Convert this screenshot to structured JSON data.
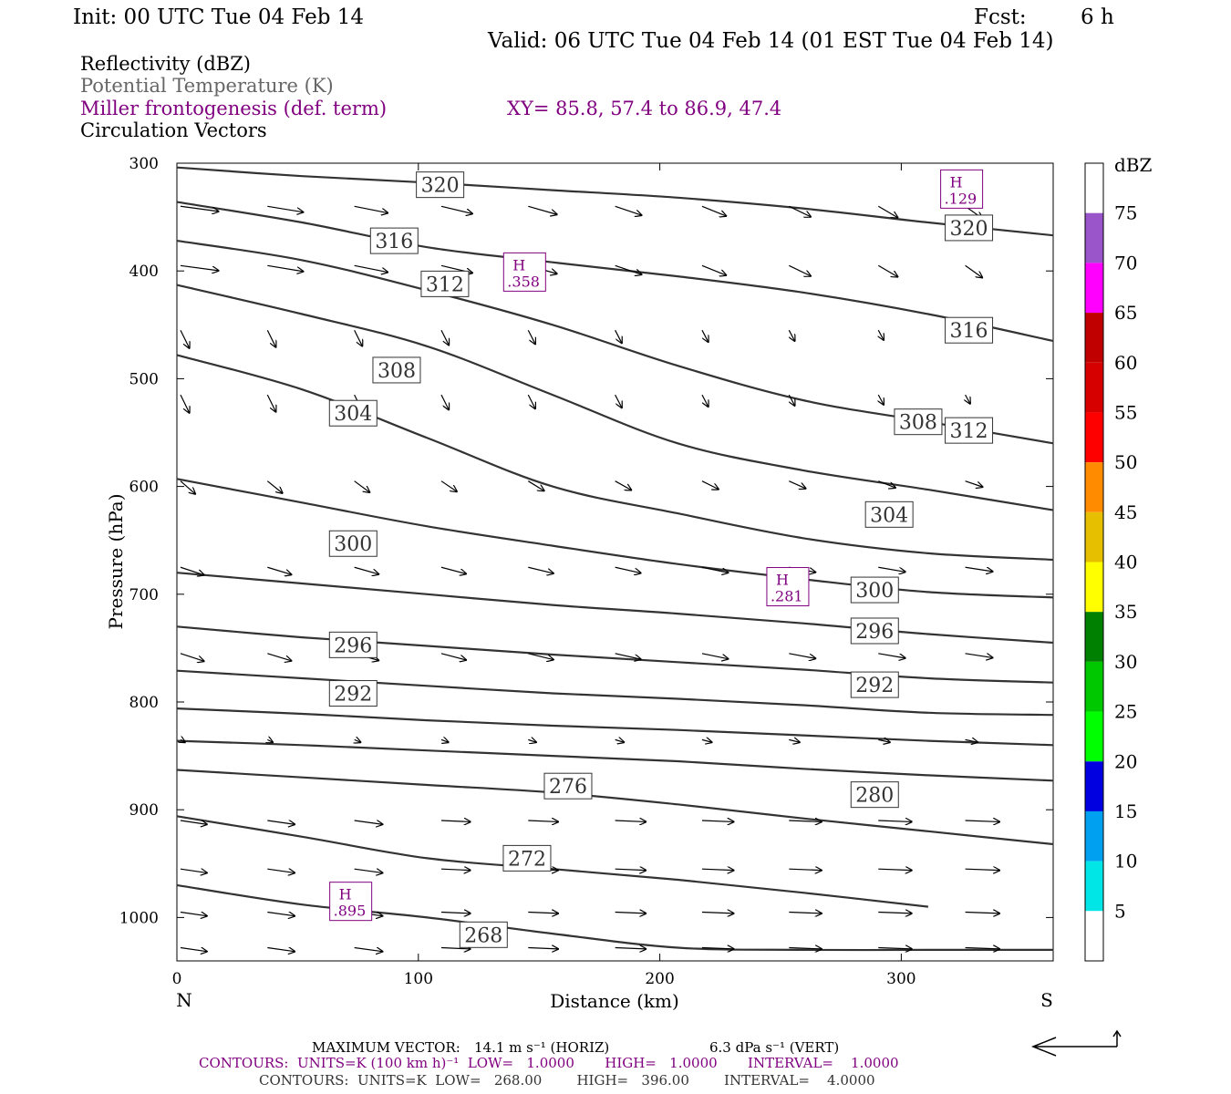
{
  "header": {
    "init": "Init: 00 UTC Tue 04 Feb 14",
    "fcst_label": "Fcst:",
    "fcst_value": "6 h",
    "valid": "Valid: 06 UTC Tue 04 Feb 14 (01 EST Tue 04 Feb 14)"
  },
  "fields": {
    "reflectivity": "Reflectivity (dBZ)",
    "theta": "Potential Temperature (K)",
    "miller": "Miller frontogenesis (def. term)",
    "xy": "XY=  85.8, 57.4 to  86.9, 47.4",
    "vectors": "Circulation Vectors"
  },
  "colors": {
    "contour": "#333333",
    "miller": "#800080",
    "theta_text": "#666666",
    "vector": "#000000"
  },
  "chart_data": {
    "type": "cross-section",
    "xlabel": "Distance (km)",
    "ylabel": "Pressure (hPa)",
    "xlim": [
      0,
      363
    ],
    "ylim": [
      1040,
      300
    ],
    "x_ticks": [
      0,
      100,
      200,
      300
    ],
    "y_ticks": [
      300,
      400,
      500,
      600,
      700,
      800,
      900,
      1000
    ],
    "end_labels": {
      "left": "N",
      "right": "S"
    },
    "theta_contours": [
      {
        "level": 320,
        "label": "320",
        "p": [
          304,
          312,
          318,
          325,
          332,
          342,
          355,
          367
        ],
        "labels": [
          [
            109,
            320
          ],
          [
            328,
            360
          ]
        ]
      },
      {
        "level": 316,
        "label": "316",
        "p": [
          336,
          355,
          378,
          392,
          405,
          420,
          440,
          465
        ],
        "labels": [
          [
            90,
            372
          ],
          [
            328,
            455
          ]
        ]
      },
      {
        "level": 312,
        "label": "312",
        "p": [
          372,
          390,
          418,
          450,
          488,
          520,
          540,
          560
        ],
        "labels": [
          [
            111,
            412
          ],
          [
            328,
            548
          ]
        ]
      },
      {
        "level": 308,
        "label": "308",
        "p": [
          413,
          440,
          470,
          515,
          560,
          585,
          603,
          622
        ],
        "labels": [
          [
            91,
            492
          ],
          [
            307,
            540
          ]
        ]
      },
      {
        "level": 304,
        "label": "304",
        "p": [
          478,
          510,
          555,
          600,
          625,
          648,
          662,
          668
        ],
        "labels": [
          [
            73,
            532
          ],
          [
            295,
            626
          ]
        ]
      },
      {
        "level": 300,
        "label": "300",
        "p": [
          593,
          615,
          637,
          655,
          672,
          686,
          698,
          703
        ],
        "labels": [
          [
            73,
            653
          ],
          [
            289,
            696
          ]
        ]
      },
      {
        "level": 296,
        "label": "296",
        "p": [
          680,
          690,
          700,
          710,
          718,
          727,
          737,
          745
        ],
        "labels": [
          [
            73,
            747
          ],
          [
            289,
            734
          ]
        ]
      },
      {
        "level": 292,
        "label": "292",
        "p": [
          730,
          740,
          748,
          756,
          763,
          770,
          778,
          782
        ],
        "labels": [
          [
            73,
            792
          ],
          [
            289,
            784
          ]
        ]
      },
      {
        "level": 288,
        "label": "",
        "p": [
          771,
          778,
          785,
          792,
          797,
          803,
          810,
          812
        ],
        "labels": []
      },
      {
        "level": 284,
        "label": "",
        "p": [
          806,
          811,
          817,
          822,
          826,
          831,
          836,
          840
        ],
        "labels": []
      },
      {
        "level": 280,
        "label": "280",
        "p": [
          836,
          840,
          845,
          850,
          855,
          862,
          868,
          873
        ],
        "labels": [
          [
            289,
            886
          ]
        ]
      },
      {
        "level": 276,
        "label": "276",
        "p": [
          863,
          870,
          877,
          884,
          895,
          908,
          920,
          932
        ],
        "labels": [
          [
            162,
            878
          ]
        ]
      },
      {
        "level": 272,
        "label": "272",
        "p": [
          906,
          925,
          945,
          955,
          965,
          977,
          990
        ],
        "labels": [
          [
            145,
            945
          ]
        ]
      },
      {
        "level": 268,
        "label": "268",
        "p": [
          970,
          988,
          1000,
          1015,
          1028,
          1030,
          1030,
          1030
        ],
        "labels": [
          [
            127,
            1016
          ]
        ]
      }
    ],
    "frontogenesis_maxima": [
      {
        "label": "H",
        "value": ".129",
        "x": 325,
        "p": 324
      },
      {
        "label": "H",
        "value": ".358",
        "x": 144,
        "p": 401
      },
      {
        "label": "H",
        "value": ".281",
        "x": 253,
        "p": 693
      },
      {
        "label": "H",
        "value": ".895",
        "x": 72,
        "p": 985
      }
    ],
    "colorbar": {
      "title": "dBZ",
      "levels": [
        "5",
        "10",
        "15",
        "20",
        "25",
        "30",
        "35",
        "40",
        "45",
        "50",
        "55",
        "60",
        "65",
        "70",
        "75"
      ],
      "colors": [
        "#ffffff",
        "#00e5e5",
        "#00a0f0",
        "#0000e0",
        "#00ff00",
        "#00c800",
        "#008000",
        "#ffff00",
        "#e6bf00",
        "#ff8c00",
        "#ff0000",
        "#d60000",
        "#c00000",
        "#ff00ff",
        "#9955c9",
        "#ffffff"
      ]
    }
  },
  "footer": {
    "max_vector_label": "MAXIMUM VECTOR:",
    "horiz": "14.1 m s⁻¹ (HORIZ)",
    "vert": "6.3 dPa s⁻¹ (VERT)",
    "contours1": "CONTOURS:  UNITS=K (100 km h)⁻¹  LOW=   1.0000       HIGH=   1.0000       INTERVAL=    1.0000",
    "contours2": "CONTOURS:  UNITS=K  LOW=   268.00        HIGH=   396.00        INTERVAL=    4.0000"
  }
}
